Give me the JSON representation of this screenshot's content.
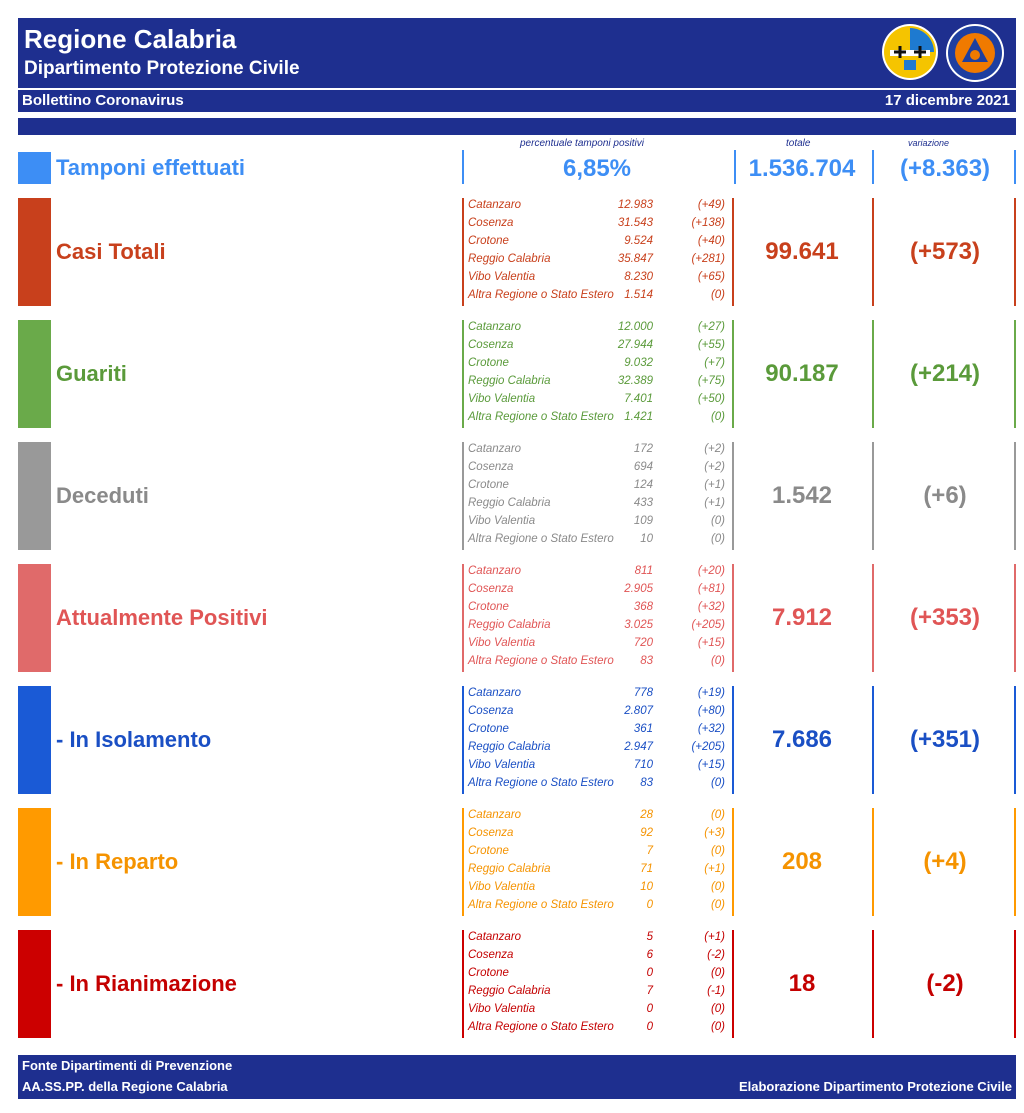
{
  "header": {
    "title": "Regione Calabria",
    "subtitle": "Dipartimento Protezione Civile",
    "bulletin": "Bollettino Coronavirus",
    "date": "17 dicembre 2021"
  },
  "column_headers": {
    "pct": "percentuale tamponi positivi",
    "total": "totale",
    "variation": "variazione"
  },
  "tamponi": {
    "label": "Tamponi effettuati",
    "pct": "6,85%",
    "total": "1.536.704",
    "variation": "(+8.363)",
    "color": "#3d8ef5"
  },
  "sections": [
    {
      "label": "Casi Totali",
      "color": "#c8401c",
      "text_color": "#c8401c",
      "total": "99.641",
      "variation": "(+573)",
      "rows": [
        {
          "name": "Catanzaro",
          "value": "12.983",
          "var": "(+49)"
        },
        {
          "name": "Cosenza",
          "value": "31.543",
          "var": "(+138)"
        },
        {
          "name": "Crotone",
          "value": "9.524",
          "var": "(+40)"
        },
        {
          "name": "Reggio Calabria",
          "value": "35.847",
          "var": "(+281)"
        },
        {
          "name": "Vibo Valentia",
          "value": "8.230",
          "var": "(+65)"
        },
        {
          "name": "Altra Regione o Stato Estero",
          "value": "1.514",
          "var": "(0)"
        }
      ]
    },
    {
      "label": "Guariti",
      "color": "#6aaa4a",
      "text_color": "#5a9a3a",
      "total": "90.187",
      "variation": "(+214)",
      "rows": [
        {
          "name": "Catanzaro",
          "value": "12.000",
          "var": "(+27)"
        },
        {
          "name": "Cosenza",
          "value": "27.944",
          "var": "(+55)"
        },
        {
          "name": "Crotone",
          "value": "9.032",
          "var": "(+7)"
        },
        {
          "name": "Reggio Calabria",
          "value": "32.389",
          "var": "(+75)"
        },
        {
          "name": "Vibo Valentia",
          "value": "7.401",
          "var": "(+50)"
        },
        {
          "name": "Altra Regione o Stato Estero",
          "value": "1.421",
          "var": "(0)"
        }
      ]
    },
    {
      "label": "Deceduti",
      "color": "#999999",
      "text_color": "#8a8a8a",
      "total": "1.542",
      "variation": "(+6)",
      "rows": [
        {
          "name": "Catanzaro",
          "value": "172",
          "var": "(+2)"
        },
        {
          "name": "Cosenza",
          "value": "694",
          "var": "(+2)"
        },
        {
          "name": "Crotone",
          "value": "124",
          "var": "(+1)"
        },
        {
          "name": "Reggio Calabria",
          "value": "433",
          "var": "(+1)"
        },
        {
          "name": "Vibo Valentia",
          "value": "109",
          "var": "(0)"
        },
        {
          "name": "Altra Regione o Stato Estero",
          "value": "10",
          "var": "(0)"
        }
      ]
    },
    {
      "label": "Attualmente Positivi",
      "color": "#e06a6a",
      "text_color": "#e05555",
      "total": "7.912",
      "variation": "(+353)",
      "rows": [
        {
          "name": "Catanzaro",
          "value": "811",
          "var": "(+20)"
        },
        {
          "name": "Cosenza",
          "value": "2.905",
          "var": "(+81)"
        },
        {
          "name": "Crotone",
          "value": "368",
          "var": "(+32)"
        },
        {
          "name": "Reggio Calabria",
          "value": "3.025",
          "var": "(+205)"
        },
        {
          "name": "Vibo Valentia",
          "value": "720",
          "var": "(+15)"
        },
        {
          "name": "Altra Regione o Stato Estero",
          "value": "83",
          "var": "(0)"
        }
      ]
    },
    {
      "label": "- In Isolamento",
      "color": "#1a5ad6",
      "text_color": "#1a4fc4",
      "total": "7.686",
      "variation": "(+351)",
      "rows": [
        {
          "name": "Catanzaro",
          "value": "778",
          "var": "(+19)"
        },
        {
          "name": "Cosenza",
          "value": "2.807",
          "var": "(+80)"
        },
        {
          "name": "Crotone",
          "value": "361",
          "var": "(+32)"
        },
        {
          "name": "Reggio Calabria",
          "value": "2.947",
          "var": "(+205)"
        },
        {
          "name": "Vibo Valentia",
          "value": "710",
          "var": "(+15)"
        },
        {
          "name": "Altra Regione o Stato Estero",
          "value": "83",
          "var": "(0)"
        }
      ]
    },
    {
      "label": "- In Reparto",
      "color": "#ff9a00",
      "text_color": "#f59300",
      "total": "208",
      "variation": "(+4)",
      "rows": [
        {
          "name": "Catanzaro",
          "value": "28",
          "var": "(0)"
        },
        {
          "name": "Cosenza",
          "value": "92",
          "var": "(+3)"
        },
        {
          "name": "Crotone",
          "value": "7",
          "var": "(0)"
        },
        {
          "name": "Reggio Calabria",
          "value": "71",
          "var": "(+1)"
        },
        {
          "name": "Vibo Valentia",
          "value": "10",
          "var": "(0)"
        },
        {
          "name": "Altra Regione o Stato Estero",
          "value": "0",
          "var": "(0)"
        }
      ]
    },
    {
      "label": "- In Rianimazione",
      "color": "#cc0000",
      "text_color": "#c40000",
      "total": "18",
      "variation": "(-2)",
      "rows": [
        {
          "name": "Catanzaro",
          "value": "5",
          "var": "(+1)"
        },
        {
          "name": "Cosenza",
          "value": "6",
          "var": "(-2)"
        },
        {
          "name": "Crotone",
          "value": "0",
          "var": "(0)"
        },
        {
          "name": "Reggio Calabria",
          "value": "7",
          "var": "(-1)"
        },
        {
          "name": "Vibo Valentia",
          "value": "0",
          "var": "(0)"
        },
        {
          "name": "Altra Regione o Stato Estero",
          "value": "0",
          "var": "(0)"
        }
      ]
    }
  ],
  "footer": {
    "line1": "Fonte Dipartimenti di Prevenzione",
    "line2": "AA.SS.PP.  della Regione Calabria",
    "credit": "Elaborazione Dipartimento Protezione Civile"
  }
}
